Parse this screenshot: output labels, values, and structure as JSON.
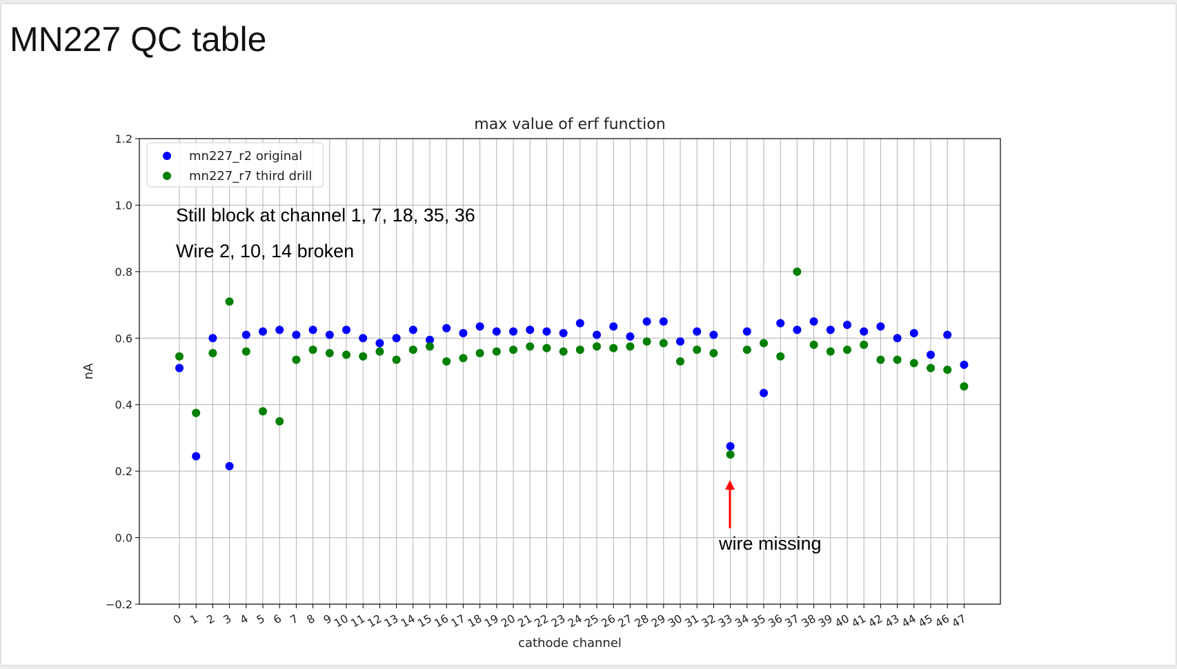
{
  "slide": {
    "title": "MN227 QC table",
    "notes": [
      "Still block at channel 1, 7, 18, 35, 36",
      "Wire 2, 10, 14 broken"
    ],
    "arrow_annotation": {
      "text": "wire missing",
      "channel": 33,
      "color": "#ff0000"
    }
  },
  "chart_data": {
    "type": "scatter",
    "title": "max value of erf function",
    "xlabel": "cathode channel",
    "ylabel": "nA",
    "x_ticks": [
      "0",
      "1",
      "2",
      "3",
      "4",
      "5",
      "6",
      "7",
      "8",
      "9",
      "10",
      "11",
      "12",
      "13",
      "14",
      "15",
      "16",
      "17",
      "18",
      "19",
      "20",
      "21",
      "22",
      "23",
      "24",
      "25",
      "26",
      "27",
      "28",
      "29",
      "30",
      "31",
      "32",
      "33",
      "34",
      "35",
      "36",
      "37",
      "38",
      "39",
      "40",
      "41",
      "42",
      "43",
      "44",
      "45",
      "46",
      "47"
    ],
    "ylim": [
      -0.2,
      1.2
    ],
    "y_ticks": [
      "−0.2",
      "0.0",
      "0.2",
      "0.4",
      "0.6",
      "0.8",
      "1.0",
      "1.2"
    ],
    "grid": true,
    "legend_position": "top-left",
    "series": [
      {
        "name": "mn227_r2 original",
        "color": "#0000ff",
        "values": [
          0.51,
          0.245,
          0.6,
          0.215,
          0.61,
          0.62,
          0.625,
          0.61,
          0.625,
          0.61,
          0.625,
          0.6,
          0.585,
          0.6,
          0.625,
          0.595,
          0.63,
          0.615,
          0.635,
          0.62,
          0.62,
          0.625,
          0.62,
          0.615,
          0.645,
          0.61,
          0.635,
          0.605,
          0.65,
          0.65,
          0.59,
          0.62,
          0.61,
          0.275,
          0.62,
          0.435,
          0.645,
          0.625,
          0.65,
          0.625,
          0.64,
          0.62,
          0.635,
          0.6,
          0.615,
          0.55,
          0.61,
          0.52
        ]
      },
      {
        "name": "mn227_r7 third drill",
        "color": "#008000",
        "values": [
          0.545,
          0.375,
          0.555,
          0.71,
          0.56,
          0.38,
          0.35,
          0.535,
          0.565,
          0.555,
          0.55,
          0.545,
          0.56,
          0.535,
          0.565,
          0.575,
          0.53,
          0.54,
          0.555,
          0.56,
          0.565,
          0.575,
          0.57,
          0.56,
          0.565,
          0.575,
          0.57,
          0.575,
          0.59,
          0.585,
          0.53,
          0.565,
          0.555,
          0.25,
          0.565,
          0.585,
          0.545,
          0.8,
          0.58,
          0.56,
          0.565,
          0.58,
          0.535,
          0.535,
          0.525,
          0.51,
          0.505,
          0.455
        ]
      }
    ]
  }
}
